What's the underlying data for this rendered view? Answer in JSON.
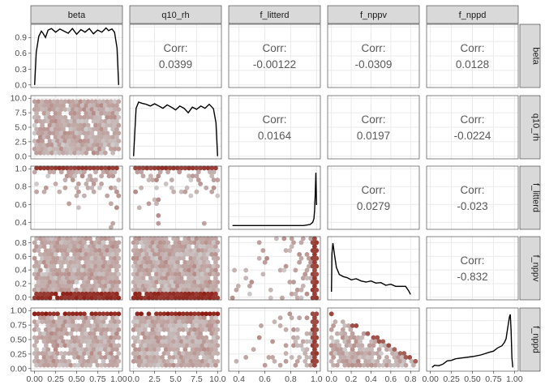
{
  "chart_data": {
    "type": "pairs-matrix",
    "variables": [
      "beta",
      "q10_rh",
      "f_litterd",
      "f_nppv",
      "f_nppd"
    ],
    "axes": {
      "beta": {
        "range": [
          0.0,
          1.0
        ],
        "ticks": [
          "0.00",
          "0.25",
          "0.50",
          "0.75",
          "1.00"
        ],
        "tick_values": [
          0,
          0.25,
          0.5,
          0.75,
          1.0
        ]
      },
      "q10_rh": {
        "range": [
          0.0,
          10.0
        ],
        "ticks": [
          "0.0",
          "2.5",
          "5.0",
          "7.5",
          "10.0"
        ],
        "tick_values": [
          0,
          2.5,
          5,
          7.5,
          10
        ]
      },
      "f_litterd": {
        "range": [
          0.35,
          1.0
        ],
        "ticks": [
          "0.4",
          "0.6",
          "0.8",
          "1.0"
        ],
        "tick_values": [
          0.4,
          0.6,
          0.8,
          1.0
        ]
      },
      "f_nppv": {
        "range": [
          0.0,
          0.85
        ],
        "ticks": [
          "0.0",
          "0.2",
          "0.4",
          "0.6",
          "0.8"
        ],
        "tick_values": [
          0,
          0.2,
          0.4,
          0.6,
          0.8
        ]
      },
      "f_nppd": {
        "range": [
          0.0,
          1.0
        ],
        "ticks": [
          "0.00",
          "0.25",
          "0.50",
          "0.75",
          "1.00"
        ],
        "tick_values": [
          0,
          0.25,
          0.5,
          0.75,
          1.0
        ]
      }
    },
    "density_axis_beta": {
      "range": [
        0.0,
        1.1
      ],
      "ticks": [
        "0.0",
        "0.3",
        "0.6",
        "0.9"
      ],
      "tick_values": [
        0,
        0.3,
        0.6,
        0.9
      ]
    },
    "correlations": [
      {
        "row": "beta",
        "col": "q10_rh",
        "label": "Corr:",
        "value": "0.0399"
      },
      {
        "row": "beta",
        "col": "f_litterd",
        "label": "Corr:",
        "value": "-0.00122"
      },
      {
        "row": "beta",
        "col": "f_nppv",
        "label": "Corr:",
        "value": "-0.0309"
      },
      {
        "row": "beta",
        "col": "f_nppd",
        "label": "Corr:",
        "value": "0.0128"
      },
      {
        "row": "q10_rh",
        "col": "f_litterd",
        "label": "Corr:",
        "value": "0.0164"
      },
      {
        "row": "q10_rh",
        "col": "f_nppv",
        "label": "Corr:",
        "value": "0.0197"
      },
      {
        "row": "q10_rh",
        "col": "f_nppd",
        "label": "Corr:",
        "value": "-0.0224"
      },
      {
        "row": "f_litterd",
        "col": "f_nppv",
        "label": "Corr:",
        "value": "0.0279"
      },
      {
        "row": "f_litterd",
        "col": "f_nppd",
        "label": "Corr:",
        "value": "-0.023"
      },
      {
        "row": "f_nppv",
        "col": "f_nppd",
        "label": "Corr:",
        "value": "-0.832"
      }
    ],
    "densities": {
      "beta": {
        "x": [
          0,
          0.02,
          0.05,
          0.08,
          0.1,
          0.13,
          0.16,
          0.2,
          0.25,
          0.3,
          0.35,
          0.4,
          0.45,
          0.5,
          0.55,
          0.6,
          0.65,
          0.7,
          0.75,
          0.8,
          0.85,
          0.88,
          0.92,
          0.95,
          0.98,
          1.0
        ],
        "y": [
          0,
          0.62,
          0.92,
          1.02,
          0.98,
          0.9,
          1.04,
          1.07,
          1.0,
          1.06,
          1.02,
          0.98,
          1.07,
          0.96,
          1.05,
          1.0,
          1.07,
          0.97,
          1.04,
          1.0,
          1.08,
          1.03,
          1.06,
          1.0,
          0.7,
          0
        ]
      },
      "q10_rh": {
        "x": [
          0,
          0.3,
          0.6,
          1.0,
          1.5,
          2.0,
          2.5,
          3.0,
          3.5,
          4.0,
          4.5,
          5.0,
          5.5,
          6.0,
          6.5,
          7.0,
          7.5,
          8.0,
          8.5,
          9.0,
          9.5,
          9.8,
          10.0
        ],
        "y": [
          0,
          0.86,
          0.97,
          0.95,
          0.93,
          0.9,
          0.94,
          0.9,
          0.86,
          0.92,
          0.88,
          0.83,
          0.9,
          0.86,
          0.78,
          0.88,
          0.84,
          0.9,
          0.86,
          0.93,
          0.85,
          0.6,
          0
        ]
      },
      "f_litterd": {
        "x": [
          0.35,
          0.6,
          0.9,
          0.95,
          0.97,
          0.98,
          0.985,
          0.99,
          0.995,
          1.0
        ],
        "y": [
          0.02,
          0.02,
          0.02,
          0.04,
          0.08,
          0.15,
          0.3,
          0.6,
          1.0,
          0.4
        ]
      },
      "f_nppv": {
        "x": [
          0,
          0.005,
          0.015,
          0.03,
          0.05,
          0.08,
          0.12,
          0.16,
          0.2,
          0.25,
          0.3,
          0.35,
          0.4,
          0.45,
          0.5,
          0.55,
          0.6,
          0.65,
          0.7,
          0.75,
          0.78,
          0.8
        ],
        "y": [
          0.1,
          0.8,
          1.0,
          0.8,
          0.55,
          0.42,
          0.38,
          0.36,
          0.32,
          0.34,
          0.3,
          0.28,
          0.3,
          0.26,
          0.27,
          0.22,
          0.24,
          0.2,
          0.2,
          0.2,
          0.12,
          0.05
        ]
      },
      "f_nppd": {
        "x": [
          0.02,
          0.05,
          0.1,
          0.15,
          0.2,
          0.25,
          0.3,
          0.4,
          0.5,
          0.6,
          0.7,
          0.75,
          0.8,
          0.85,
          0.88,
          0.9,
          0.92,
          0.94,
          0.95,
          0.96,
          0.97,
          0.98
        ],
        "y": [
          0.02,
          0.06,
          0.05,
          0.08,
          0.14,
          0.15,
          0.18,
          0.2,
          0.22,
          0.25,
          0.3,
          0.32,
          0.38,
          0.42,
          0.48,
          0.55,
          0.75,
          0.95,
          1.0,
          0.7,
          0.2,
          0.02
        ]
      }
    },
    "hexbin_color_low": "#cfcfcf",
    "hexbin_color_high": "#8b1a10",
    "panel_background": "#ffffff",
    "grid_color": "#ebebeb",
    "strip_background": "#d9d9d9",
    "grid": true
  }
}
